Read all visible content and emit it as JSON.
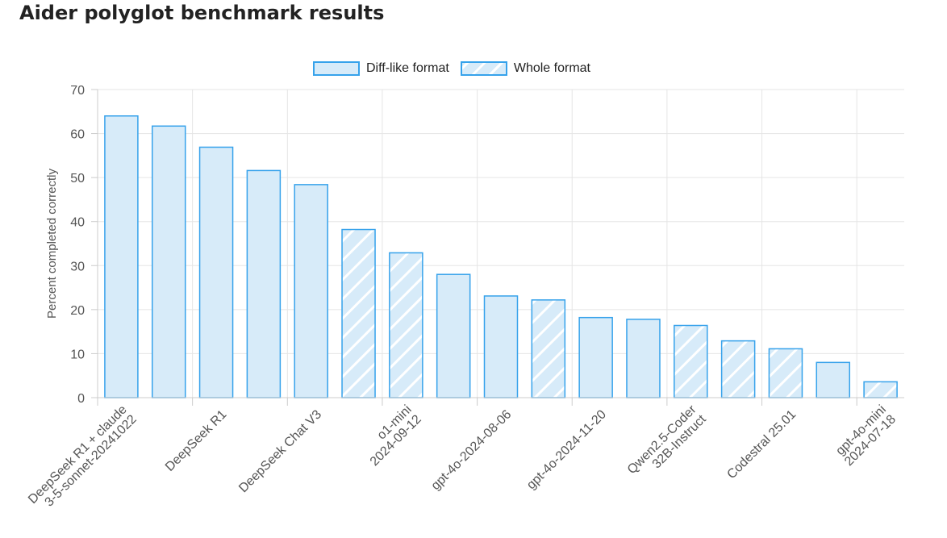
{
  "page": {
    "title": "Aider polyglot benchmark results"
  },
  "legend": {
    "diff_label": "Diff-like format",
    "whole_label": "Whole format"
  },
  "colors": {
    "bar_fill": "#d7ebf9",
    "bar_border": "#36a2eb",
    "hatch": "#ffffff",
    "grid": "#e5e5e5"
  },
  "chart_data": {
    "type": "bar",
    "title": "",
    "xlabel": "",
    "ylabel": "Percent completed correctly",
    "ylim": [
      0,
      70
    ],
    "yticks": [
      0,
      10,
      20,
      30,
      40,
      50,
      60,
      70
    ],
    "grid": true,
    "legend_position": "top",
    "series": [
      {
        "name": "Diff-like format",
        "pattern": "solid"
      },
      {
        "name": "Whole format",
        "pattern": "hatched"
      }
    ],
    "bars": [
      {
        "model": "DeepSeek R1 + claude 3-5-sonnet-20241022",
        "value": 64.0,
        "format": "diff"
      },
      {
        "model": "",
        "value": 61.7,
        "format": "diff"
      },
      {
        "model": "DeepSeek R1",
        "value": 56.9,
        "format": "diff"
      },
      {
        "model": "",
        "value": 51.6,
        "format": "diff"
      },
      {
        "model": "DeepSeek Chat V3",
        "value": 48.4,
        "format": "diff"
      },
      {
        "model": "",
        "value": 38.2,
        "format": "whole"
      },
      {
        "model": "o1-mini 2024-09-12",
        "value": 32.9,
        "format": "whole"
      },
      {
        "model": "",
        "value": 28.0,
        "format": "diff"
      },
      {
        "model": "gpt-4o-2024-08-06",
        "value": 23.1,
        "format": "diff"
      },
      {
        "model": "",
        "value": 22.2,
        "format": "whole"
      },
      {
        "model": "gpt-4o-2024-11-20",
        "value": 18.2,
        "format": "diff"
      },
      {
        "model": "",
        "value": 17.8,
        "format": "diff"
      },
      {
        "model": "Qwen2.5-Coder 32B-Instruct",
        "value": 16.4,
        "format": "whole"
      },
      {
        "model": "",
        "value": 12.9,
        "format": "whole"
      },
      {
        "model": "Codestral 25.01",
        "value": 11.1,
        "format": "whole"
      },
      {
        "model": "",
        "value": 8.0,
        "format": "diff"
      },
      {
        "model": "gpt-4o-mini 2024-07-18",
        "value": 3.6,
        "format": "whole"
      }
    ],
    "x_labels": [
      {
        "bar": 0,
        "lines": [
          "DeepSeek R1 + claude",
          "3-5-sonnet-20241022"
        ]
      },
      {
        "bar": 2,
        "lines": [
          "DeepSeek R1"
        ]
      },
      {
        "bar": 4,
        "lines": [
          "DeepSeek Chat V3"
        ]
      },
      {
        "bar": 6,
        "lines": [
          "o1-mini",
          "2024-09-12"
        ]
      },
      {
        "bar": 8,
        "lines": [
          "gpt-4o-2024-08-06"
        ]
      },
      {
        "bar": 10,
        "lines": [
          "gpt-4o-2024-11-20"
        ]
      },
      {
        "bar": 12,
        "lines": [
          "Qwen2.5-Coder",
          "32B-Instruct"
        ]
      },
      {
        "bar": 14,
        "lines": [
          "Codestral 25.01"
        ]
      },
      {
        "bar": 16,
        "lines": [
          "gpt-4o-mini",
          "2024-07-18"
        ]
      }
    ]
  }
}
